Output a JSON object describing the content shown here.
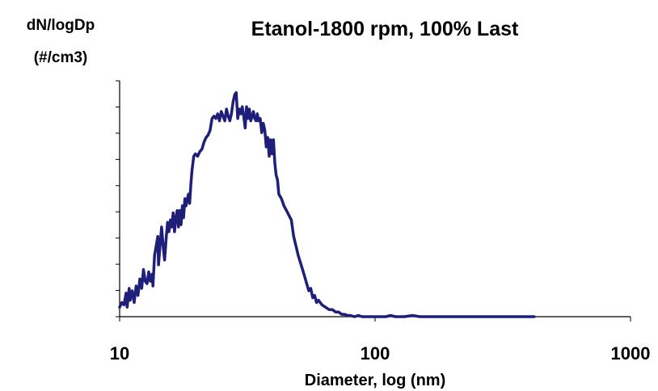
{
  "chart_data": {
    "type": "line",
    "title": "Etanol-1800 rpm, 100% Last",
    "ylabel_line1": "dN/logDp",
    "ylabel_line2": "(#/cm3)",
    "xlabel": "Diameter, log (nm)",
    "xscale": "log",
    "xlim": [
      10,
      1000
    ],
    "ylim": [
      0,
      1
    ],
    "x_tick_labels": [
      "10",
      "100",
      "1000"
    ],
    "y_tick_labels_shown": false,
    "grid": false,
    "line_color": "#1f1f7a",
    "series": [
      {
        "x": [
          10.0,
          10.2,
          10.4,
          10.6,
          10.7,
          10.9,
          11.0,
          11.2,
          11.4,
          11.6,
          11.8,
          12.0,
          12.2,
          12.4,
          12.6,
          12.8,
          13.0,
          13.2,
          13.4,
          13.5,
          13.7,
          13.9,
          14.1,
          14.2,
          14.4,
          14.6,
          14.8,
          15.0,
          15.2,
          15.4,
          15.6,
          15.8,
          16.0,
          16.2,
          16.4,
          16.6,
          16.8,
          17.0,
          17.2,
          17.4,
          17.6,
          17.8,
          18.0,
          18.2,
          18.4,
          18.6,
          18.8,
          19.0,
          19.2,
          19.5,
          19.8,
          20.2,
          20.6,
          21.0,
          21.4,
          21.8,
          22.2,
          22.6,
          23.0,
          23.4,
          23.8,
          24.2,
          24.6,
          25.0,
          25.4,
          25.8,
          26.2,
          26.6,
          27.0,
          27.4,
          27.8,
          28.2,
          28.6,
          29.0,
          29.4,
          29.8,
          30.2,
          30.6,
          31.0,
          31.4,
          31.8,
          32.2,
          32.6,
          33.0,
          33.4,
          33.8,
          34.2,
          34.6,
          35.0,
          35.5,
          36.0,
          36.5,
          37.0,
          37.5,
          38.0,
          38.5,
          39.0,
          39.5,
          40.0,
          40.5,
          41.0,
          41.5,
          42.0,
          43.0,
          44.0,
          45.0,
          46.0,
          47.0,
          48.0,
          49.0,
          50.0,
          51.0,
          52.0,
          53.0,
          54.0,
          55.0,
          56.0,
          57.0,
          58.0,
          59.0,
          60.0,
          62.0,
          64.0,
          66.0,
          68.0,
          70.0,
          72.0,
          74.0,
          76.0,
          78.0,
          80.0,
          83.0,
          86.0,
          89.0,
          92.0,
          95.0,
          98.0,
          100.0,
          105.0,
          110.0,
          115.0,
          120.0,
          130.0,
          140.0,
          150.0,
          160.0,
          180.0,
          200.0,
          250.0,
          300.0,
          350.0,
          400.0,
          420.0
        ],
        "y": [
          0.04,
          0.06,
          0.05,
          0.1,
          0.04,
          0.12,
          0.07,
          0.11,
          0.06,
          0.13,
          0.09,
          0.16,
          0.12,
          0.2,
          0.15,
          0.14,
          0.19,
          0.15,
          0.18,
          0.13,
          0.26,
          0.3,
          0.34,
          0.22,
          0.3,
          0.38,
          0.3,
          0.24,
          0.33,
          0.4,
          0.36,
          0.41,
          0.38,
          0.44,
          0.36,
          0.42,
          0.45,
          0.38,
          0.45,
          0.39,
          0.47,
          0.42,
          0.5,
          0.47,
          0.5,
          0.52,
          0.48,
          0.56,
          0.62,
          0.68,
          0.69,
          0.68,
          0.7,
          0.71,
          0.74,
          0.76,
          0.77,
          0.79,
          0.84,
          0.85,
          0.84,
          0.86,
          0.83,
          0.87,
          0.85,
          0.83,
          0.88,
          0.85,
          0.83,
          0.86,
          0.91,
          0.94,
          0.95,
          0.84,
          0.88,
          0.86,
          0.89,
          0.85,
          0.8,
          0.89,
          0.84,
          0.88,
          0.83,
          0.85,
          0.87,
          0.84,
          0.83,
          0.86,
          0.83,
          0.84,
          0.78,
          0.82,
          0.79,
          0.72,
          0.76,
          0.68,
          0.75,
          0.69,
          0.75,
          0.65,
          0.6,
          0.58,
          0.52,
          0.5,
          0.47,
          0.45,
          0.43,
          0.41,
          0.34,
          0.3,
          0.26,
          0.23,
          0.2,
          0.17,
          0.14,
          0.11,
          0.12,
          0.08,
          0.09,
          0.06,
          0.07,
          0.05,
          0.04,
          0.03,
          0.03,
          0.02,
          0.02,
          0.01,
          0.01,
          0.005,
          0.005,
          0.0,
          0.005,
          0.0,
          0.0,
          0.0,
          0.0,
          0.0,
          0.0,
          0.0,
          0.005,
          0.0,
          0.0,
          0.005,
          0.0,
          0.0,
          0.0,
          0.0,
          0.0,
          0.0,
          0.0,
          0.0,
          0.0
        ]
      }
    ]
  }
}
